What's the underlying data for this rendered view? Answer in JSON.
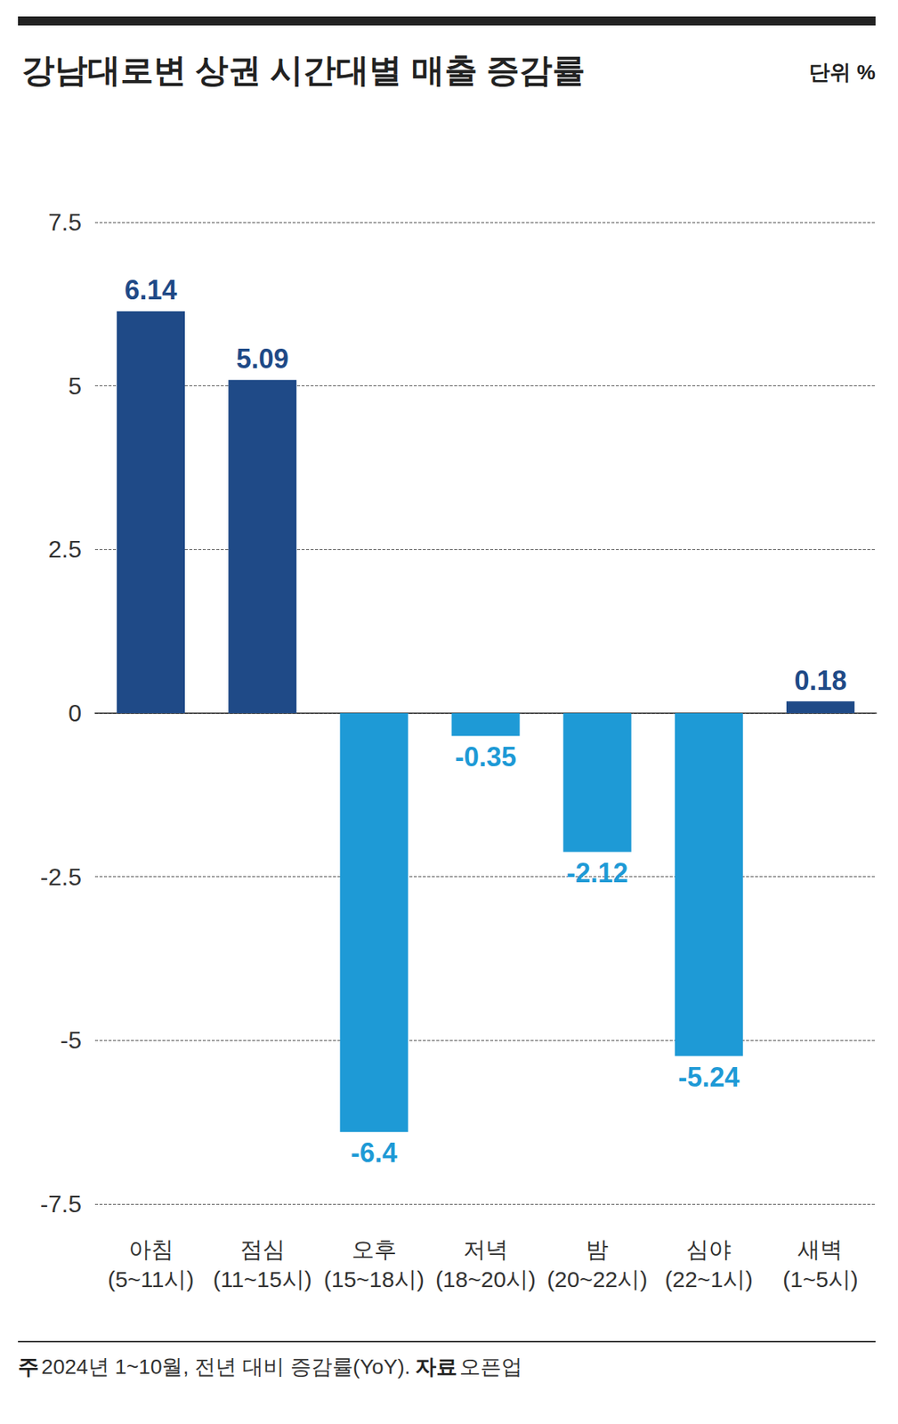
{
  "chart_data": {
    "type": "bar",
    "title": "강남대로변 상권 시간대별 매출 증감률",
    "unit": "단위 %",
    "categories": [
      "아침\n(5~11시)",
      "점심\n(11~15시)",
      "오후\n(15~18시)",
      "저녁\n(18~20시)",
      "밤\n(20~22시)",
      "심야\n(22~1시)",
      "새벽\n(1~5시)"
    ],
    "values": [
      6.14,
      5.09,
      -6.4,
      -0.35,
      -2.12,
      -5.24,
      0.18
    ],
    "colors": [
      "#1f4a87",
      "#1f4a87",
      "#1e9ad6",
      "#1e9ad6",
      "#1e9ad6",
      "#1e9ad6",
      "#1f4a87"
    ],
    "ylim": [
      -7.5,
      7.5
    ],
    "yticks": [
      -7.5,
      -5,
      -2.5,
      0,
      2.5,
      5,
      7.5
    ],
    "grid": true,
    "data_labels": true,
    "note_label": "주",
    "note": "2024년 1~10월, 전년 대비 증감률(YoY).",
    "source_label": "자료",
    "source": "오픈업"
  }
}
